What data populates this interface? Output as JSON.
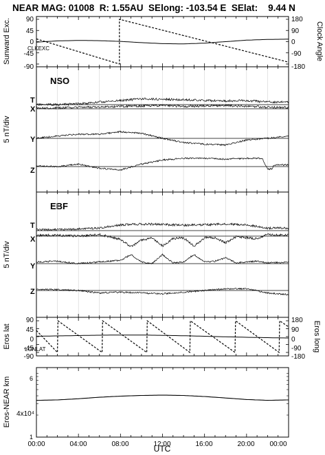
{
  "header": {
    "title": "NEAR MAG: 01008  R: 1.55AU  SElong: -103.54 E  SElat:    9.44 N"
  },
  "x_axis": {
    "label": "UTC",
    "ticks": [
      "00:00",
      "04:00",
      "08:00",
      "12:00",
      "16:00",
      "20:00",
      "00:00"
    ]
  },
  "chart_data": [
    {
      "type": "line",
      "panel": "sunward-clock",
      "ylabel_left": "Sunward Exc.",
      "ylabel_right": "Clock Angle",
      "left_ticks": [
        "90",
        "45",
        "0",
        "-45",
        "-90"
      ],
      "right_ticks": [
        "180",
        "90",
        "0",
        "-90",
        "-180"
      ],
      "ylim_left": [
        -90,
        90
      ],
      "ylim_right": [
        -180,
        180
      ],
      "inline_label": "CLKEXC",
      "x_range_hours": [
        0,
        24
      ],
      "series": [
        {
          "name": "",
          "style": "solid",
          "axis": "left",
          "x": [
            0,
            2,
            4,
            6,
            8,
            10,
            12,
            14,
            16,
            18,
            20,
            22,
            24
          ],
          "y": [
            -2,
            3,
            5,
            4,
            1,
            -4,
            -8,
            -9,
            -6,
            0,
            6,
            9,
            10
          ]
        },
        {
          "name": "",
          "style": "dashed",
          "axis": "right",
          "x": [
            0,
            7.9,
            7.9,
            24
          ],
          "y": [
            22,
            -180,
            180,
            -165
          ]
        }
      ]
    },
    {
      "type": "line",
      "panel": "NSO",
      "title": "NSO",
      "ylabel": "5 nT/div",
      "components": [
        "T",
        "X",
        "Y",
        "Z"
      ],
      "x_range_hours": [
        0,
        24
      ],
      "series": [
        {
          "name": "T",
          "x": [
            0,
            2,
            4,
            6,
            8,
            10,
            12,
            14,
            16,
            18,
            20,
            22,
            24
          ],
          "y": [
            0.0,
            0.0,
            0.2,
            0.6,
            1.0,
            1.4,
            1.3,
            1.2,
            1.0,
            0.9,
            1.0,
            0.6,
            0.7
          ]
        },
        {
          "name": "X",
          "x": [
            0,
            2,
            4,
            6,
            8,
            10,
            12,
            14,
            16,
            18,
            20,
            22,
            24
          ],
          "y": [
            0.2,
            0.2,
            0.3,
            0.5,
            0.6,
            0.7,
            0.8,
            0.6,
            0.7,
            0.8,
            0.6,
            0.4,
            0.3
          ]
        },
        {
          "name": "Y",
          "x": [
            0,
            2,
            4,
            6,
            8,
            10,
            12,
            14,
            16,
            18,
            20,
            22,
            24
          ],
          "y": [
            0.0,
            0.6,
            1.0,
            1.0,
            1.6,
            1.2,
            0.0,
            -1.0,
            -1.4,
            -1.6,
            -0.4,
            0.0,
            0.6
          ]
        },
        {
          "name": "Z",
          "x": [
            0,
            2,
            4,
            6,
            8,
            10,
            12,
            14,
            16,
            18,
            20,
            21.5,
            22.0,
            22.4,
            22.6,
            24
          ],
          "y": [
            0.2,
            0.0,
            0.6,
            -0.4,
            -0.8,
            0.6,
            1.6,
            2.0,
            2.0,
            1.8,
            2.0,
            2.0,
            -0.6,
            -0.6,
            0.4,
            0.4
          ]
        }
      ]
    },
    {
      "type": "line",
      "panel": "EBF",
      "title": "EBF",
      "ylabel": "5 nT/div",
      "components": [
        "T",
        "X",
        "Y",
        "Z"
      ],
      "x_range_hours": [
        0,
        24
      ],
      "series": [
        {
          "name": "T",
          "x": [
            0,
            2,
            4,
            6,
            8,
            10,
            12,
            14,
            16,
            18,
            20,
            22,
            24
          ],
          "y": [
            0.2,
            0.2,
            0.4,
            0.6,
            1.4,
            1.6,
            1.5,
            1.3,
            1.4,
            1.6,
            1.4,
            0.6,
            0.6
          ]
        },
        {
          "name": "X",
          "x": [
            0,
            2,
            4,
            6,
            8,
            9,
            10,
            11,
            12,
            13,
            14,
            15,
            16,
            17,
            18,
            19,
            20,
            21,
            22,
            23,
            24
          ],
          "y": [
            0.2,
            0.2,
            0.0,
            0.4,
            -0.8,
            -2.6,
            -1.0,
            -0.4,
            -2.4,
            -0.6,
            -0.4,
            -2.4,
            -0.4,
            -0.4,
            -1.6,
            -0.2,
            -0.4,
            -0.6,
            0.4,
            0.2,
            0.3
          ]
        },
        {
          "name": "Y",
          "x": [
            0,
            2,
            4,
            6,
            8,
            9,
            10,
            11,
            12,
            13,
            14,
            15,
            16,
            17,
            18,
            19,
            20,
            21,
            22,
            23,
            24
          ],
          "y": [
            0.4,
            0.6,
            0.0,
            0.4,
            0.8,
            2.2,
            0.4,
            0.0,
            2.2,
            0.2,
            0.4,
            2.2,
            0.4,
            0.6,
            1.4,
            0.2,
            0.4,
            0.6,
            0.2,
            0.3,
            0.4
          ]
        },
        {
          "name": "Z",
          "x": [
            0,
            2,
            4,
            6,
            8,
            10,
            12,
            14,
            16,
            18,
            20,
            22,
            24
          ],
          "y": [
            0.3,
            0.2,
            0.0,
            -0.6,
            -0.4,
            -0.6,
            -0.8,
            -0.4,
            0.0,
            0.4,
            0.4,
            -0.6,
            -1.0
          ]
        }
      ]
    },
    {
      "type": "line",
      "panel": "eros-lat-long",
      "ylabel_left": "Eros lat",
      "ylabel_right": "Eros long",
      "left_ticks": [
        "90",
        "45",
        "0",
        "-45",
        "-90"
      ],
      "right_ticks": [
        "180",
        "90",
        "0",
        "-90",
        "-180"
      ],
      "ylim_left": [
        -90,
        90
      ],
      "ylim_right": [
        -180,
        180
      ],
      "inline_label": "LONLAT",
      "x_range_hours": [
        0,
        24
      ],
      "series": [
        {
          "name": "",
          "style": "solid",
          "axis": "left",
          "x": [
            0,
            2,
            4,
            6,
            8,
            10,
            12,
            14,
            16,
            18,
            20,
            22,
            24
          ],
          "y": [
            2,
            4,
            6,
            8,
            9,
            9,
            7,
            5,
            2,
            -1,
            -4,
            -6,
            -8
          ]
        },
        {
          "name": "",
          "style": "dashed",
          "axis": "right",
          "x": [
            0,
            2.0,
            2.05,
            6.25,
            6.3,
            10.5,
            10.55,
            14.6,
            14.65,
            18.9,
            18.95,
            23.1,
            23.15,
            24
          ],
          "y": [
            70,
            -180,
            180,
            -180,
            180,
            -180,
            180,
            -180,
            180,
            -180,
            180,
            -180,
            180,
            110
          ]
        }
      ]
    },
    {
      "type": "line",
      "panel": "eros-near-distance",
      "ylabel": "Eros-NEAR km",
      "yscale": "log",
      "tick_labels": [
        "6",
        "4x10⁴",
        "1"
      ],
      "x_range_hours": [
        0,
        24
      ],
      "series": [
        {
          "name": "",
          "x": [
            0,
            2,
            4,
            6,
            8,
            10,
            12,
            14,
            16,
            18,
            20,
            22,
            24
          ],
          "y": [
            34000,
            34500,
            36000,
            38000,
            39500,
            40500,
            41000,
            40500,
            39000,
            37000,
            35000,
            34000,
            34500
          ]
        }
      ]
    }
  ]
}
